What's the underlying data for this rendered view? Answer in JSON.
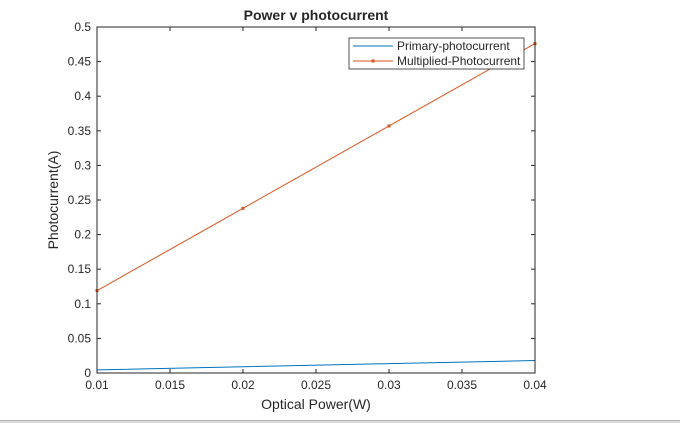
{
  "chart_data": {
    "type": "line",
    "title": "Power v  photocurrent",
    "xlabel": "Optical Power(W)",
    "ylabel": "Photocurrent(A)",
    "xlim": [
      0.01,
      0.04
    ],
    "ylim": [
      0,
      0.5
    ],
    "xticks": [
      0.01,
      0.015,
      0.02,
      0.025,
      0.03,
      0.035,
      0.04
    ],
    "xtick_labels": [
      "0.01",
      "0.015",
      "0.02",
      "0.025",
      "0.03",
      "0.035",
      "0.04"
    ],
    "yticks": [
      0,
      0.05,
      0.1,
      0.15,
      0.2,
      0.25,
      0.3,
      0.35,
      0.4,
      0.45,
      0.5
    ],
    "ytick_labels": [
      "0",
      "0.05",
      "0.1",
      "0.15",
      "0.2",
      "0.25",
      "0.3",
      "0.35",
      "0.4",
      "0.45",
      "0.5"
    ],
    "grid": false,
    "legend_position": "top-right",
    "series": [
      {
        "name": "Primary-photocurrent",
        "color": "#0072BD",
        "marker": "none",
        "x": [
          0.01,
          0.02,
          0.03,
          0.04
        ],
        "y": [
          0.0045,
          0.009,
          0.0135,
          0.018
        ]
      },
      {
        "name": "Multiplied-Photocurrent",
        "color": "#D95319",
        "marker": "square",
        "x": [
          0.01,
          0.02,
          0.03,
          0.04
        ],
        "y": [
          0.119,
          0.238,
          0.357,
          0.476
        ]
      }
    ]
  }
}
